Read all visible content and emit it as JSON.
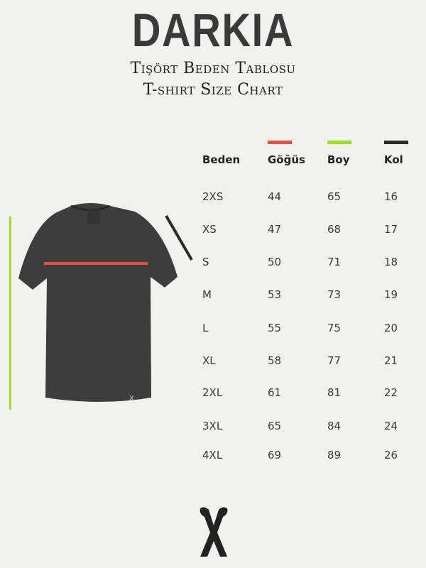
{
  "brand": "DARKIA",
  "title_tr": "Tişört Beden Tablosu",
  "title_en": "T-shirt Size Chart",
  "colors": {
    "gogus": "#e8503f",
    "boy": "#9be21c",
    "kol": "#2a2a2a"
  },
  "table": {
    "headers": [
      "Beden",
      "Göğüs",
      "Boy",
      "Kol"
    ],
    "rows": [
      [
        "2XS",
        "44",
        "65",
        "16"
      ],
      [
        "XS",
        "47",
        "68",
        "17"
      ],
      [
        "S",
        "50",
        "71",
        "18"
      ],
      [
        "M",
        "53",
        "73",
        "19"
      ],
      [
        "L",
        "55",
        "75",
        "20"
      ],
      [
        "XL",
        "58",
        "77",
        "21"
      ],
      [
        "2XL",
        "61",
        "81",
        "22"
      ],
      [
        "3XL",
        "65",
        "84",
        "24"
      ],
      [
        "4XL",
        "69",
        "89",
        "26"
      ]
    ]
  }
}
